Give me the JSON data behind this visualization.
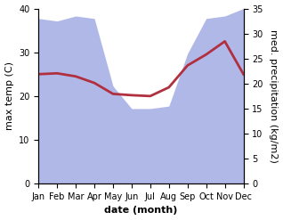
{
  "months": [
    "Jan",
    "Feb",
    "Mar",
    "Apr",
    "May",
    "Jun",
    "Jul",
    "Aug",
    "Sep",
    "Oct",
    "Nov",
    "Dec"
  ],
  "x": [
    0,
    1,
    2,
    3,
    4,
    5,
    6,
    7,
    8,
    9,
    10,
    11
  ],
  "temperature": [
    25.0,
    25.2,
    24.5,
    23.0,
    20.5,
    20.2,
    20.0,
    22.0,
    27.0,
    29.5,
    32.5,
    25.0
  ],
  "rainfall": [
    33.0,
    32.5,
    33.5,
    33.0,
    19.5,
    15.0,
    15.0,
    15.5,
    26.0,
    33.0,
    33.5,
    35.0
  ],
  "temp_ylim": [
    0,
    40
  ],
  "rain_ylim": [
    0,
    35
  ],
  "temp_yticks": [
    0,
    10,
    20,
    30,
    40
  ],
  "rain_yticks": [
    0,
    5,
    10,
    15,
    20,
    25,
    30,
    35
  ],
  "ylabel_left": "max temp (C)",
  "ylabel_right": "med. precipitation (kg/m2)",
  "xlabel": "date (month)",
  "rain_color": "#b0b8e8",
  "temp_color": "#b03040",
  "background_color": "#ffffff",
  "label_fontsize": 8,
  "tick_fontsize": 7,
  "scale_factor": 1.142857
}
